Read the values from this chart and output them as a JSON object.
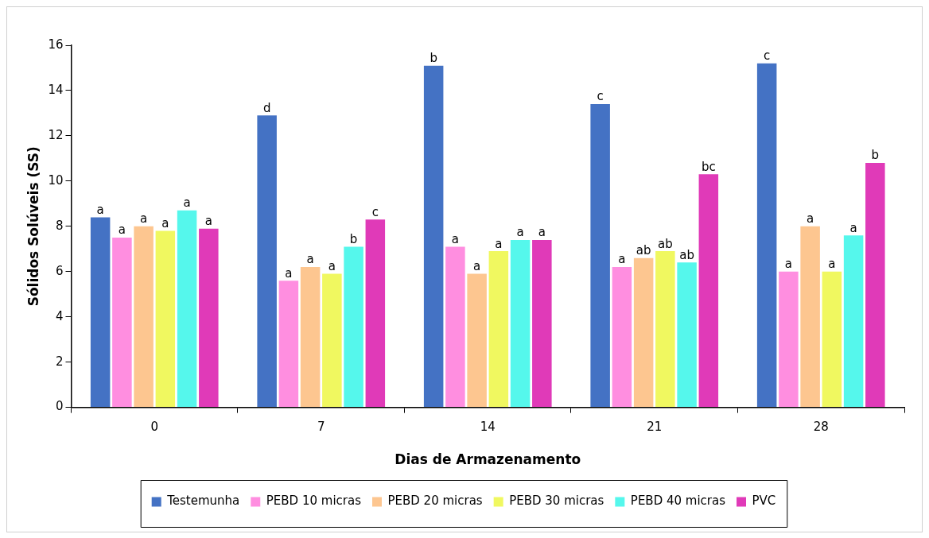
{
  "chart_data": {
    "type": "bar",
    "xlabel": "Dias de Armazenamento",
    "ylabel": "Sólidos Solúveis (SS)",
    "categories": [
      "0",
      "7",
      "14",
      "21",
      "28"
    ],
    "ylim": [
      0,
      16
    ],
    "yticks": [
      0,
      2,
      4,
      6,
      8,
      10,
      12,
      14,
      16
    ],
    "grid": false,
    "legend": "bottom",
    "series": [
      {
        "name": "Testemunha",
        "color": "#4472c4",
        "values": [
          8.4,
          12.9,
          15.1,
          13.4,
          15.2
        ],
        "value_labels": [
          "a",
          "d",
          "b",
          "c",
          "c"
        ]
      },
      {
        "name": "PEBD 10 micras",
        "color": "#ff8ee0",
        "values": [
          7.5,
          5.6,
          7.1,
          6.2,
          6.0
        ],
        "value_labels": [
          "a",
          "a",
          "a",
          "a",
          "a"
        ]
      },
      {
        "name": "PEBD 20 micras",
        "color": "#fdc690",
        "values": [
          8.0,
          6.2,
          5.9,
          6.6,
          8.0
        ],
        "value_labels": [
          "a",
          "a",
          "a",
          "ab",
          "a"
        ]
      },
      {
        "name": "PEBD 30 micras",
        "color": "#f0f860",
        "values": [
          7.8,
          5.9,
          6.9,
          6.9,
          6.0
        ],
        "value_labels": [
          "a",
          "a",
          "a",
          "ab",
          "a"
        ]
      },
      {
        "name": "PEBD 40 micras",
        "color": "#55f7ec",
        "values": [
          8.7,
          7.1,
          7.4,
          6.4,
          7.6
        ],
        "value_labels": [
          "a",
          "b",
          "a",
          "ab",
          "a"
        ]
      },
      {
        "name": "PVC",
        "color": "#e03ab8",
        "values": [
          7.9,
          8.3,
          7.4,
          10.3,
          10.8
        ],
        "value_labels": [
          "a",
          "c",
          "a",
          "bc",
          "b"
        ]
      }
    ]
  }
}
